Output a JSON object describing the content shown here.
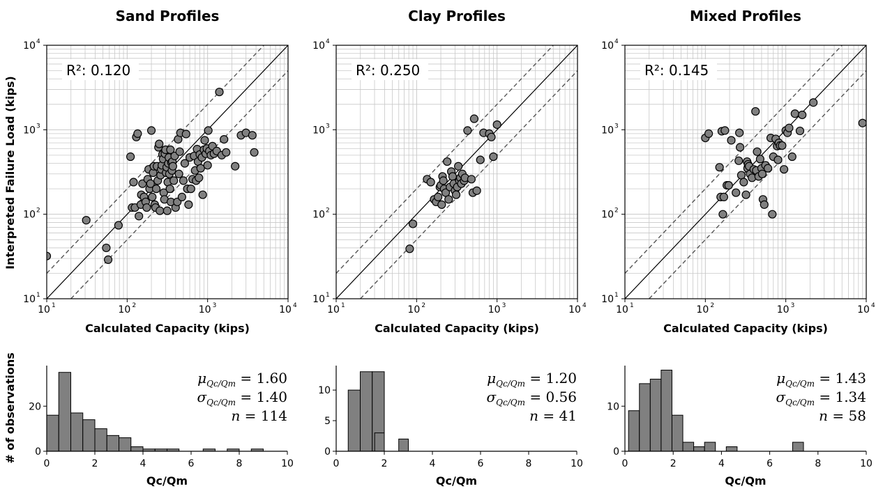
{
  "figure": {
    "scatter_ylabel": "Interpreted Failure Load (kips)",
    "hist_ylabel": "# of observations"
  },
  "chart_data": [
    {
      "id": "sand-scatter",
      "type": "scatter",
      "title": "Sand Profiles",
      "xlabel": "Calculated Capacity (kips)",
      "ylabel": "Interpreted Failure Load (kips)",
      "scale": "log",
      "xlim": [
        10,
        10000
      ],
      "ylim": [
        10,
        10000
      ],
      "annotation": "R²: 0.120",
      "reference_lines": [
        {
          "type": "1:1",
          "style": "solid"
        },
        {
          "type": "2:1",
          "style": "dashed"
        },
        {
          "type": "1:2",
          "style": "dashed"
        }
      ],
      "points": [
        [
          10,
          32
        ],
        [
          31,
          85
        ],
        [
          55,
          40
        ],
        [
          58,
          29
        ],
        [
          78,
          74
        ],
        [
          110,
          480
        ],
        [
          115,
          120
        ],
        [
          120,
          240
        ],
        [
          125,
          120
        ],
        [
          130,
          820
        ],
        [
          135,
          900
        ],
        [
          140,
          95
        ],
        [
          148,
          130
        ],
        [
          150,
          170
        ],
        [
          155,
          230
        ],
        [
          162,
          160
        ],
        [
          170,
          140
        ],
        [
          175,
          120
        ],
        [
          180,
          260
        ],
        [
          185,
          340
        ],
        [
          190,
          200
        ],
        [
          195,
          230
        ],
        [
          200,
          980
        ],
        [
          205,
          160
        ],
        [
          210,
          310
        ],
        [
          215,
          370
        ],
        [
          220,
          130
        ],
        [
          225,
          120
        ],
        [
          230,
          200
        ],
        [
          235,
          370
        ],
        [
          240,
          250
        ],
        [
          245,
          620
        ],
        [
          250,
          680
        ],
        [
          255,
          110
        ],
        [
          260,
          290
        ],
        [
          265,
          340
        ],
        [
          270,
          380
        ],
        [
          275,
          510
        ],
        [
          280,
          450
        ],
        [
          285,
          180
        ],
        [
          290,
          150
        ],
        [
          295,
          520
        ],
        [
          300,
          580
        ],
        [
          305,
          310
        ],
        [
          310,
          360
        ],
        [
          315,
          110
        ],
        [
          320,
          240
        ],
        [
          325,
          400
        ],
        [
          330,
          470
        ],
        [
          335,
          300
        ],
        [
          340,
          200
        ],
        [
          345,
          580
        ],
        [
          350,
          140
        ],
        [
          355,
          410
        ],
        [
          360,
          330
        ],
        [
          365,
          420
        ],
        [
          370,
          370
        ],
        [
          380,
          250
        ],
        [
          390,
          490
        ],
        [
          400,
          120
        ],
        [
          420,
          140
        ],
        [
          430,
          770
        ],
        [
          440,
          300
        ],
        [
          450,
          550
        ],
        [
          460,
          920
        ],
        [
          480,
          160
        ],
        [
          500,
          250
        ],
        [
          520,
          400
        ],
        [
          540,
          890
        ],
        [
          560,
          200
        ],
        [
          580,
          130
        ],
        [
          600,
          470
        ],
        [
          620,
          200
        ],
        [
          650,
          260
        ],
        [
          680,
          490
        ],
        [
          700,
          330
        ],
        [
          720,
          250
        ],
        [
          740,
          590
        ],
        [
          760,
          420
        ],
        [
          780,
          270
        ],
        [
          800,
          510
        ],
        [
          820,
          350
        ],
        [
          850,
          470
        ],
        [
          870,
          170
        ],
        [
          900,
          580
        ],
        [
          920,
          750
        ],
        [
          950,
          520
        ],
        [
          980,
          600
        ],
        [
          1000,
          380
        ],
        [
          1020,
          980
        ],
        [
          1050,
          560
        ],
        [
          1100,
          500
        ],
        [
          1150,
          640
        ],
        [
          1200,
          520
        ],
        [
          1300,
          560
        ],
        [
          1400,
          2800
        ],
        [
          1500,
          500
        ],
        [
          1600,
          770
        ],
        [
          1700,
          540
        ],
        [
          2200,
          370
        ],
        [
          2600,
          860
        ],
        [
          3000,
          920
        ],
        [
          3600,
          860
        ],
        [
          3800,
          540
        ]
      ]
    },
    {
      "id": "clay-scatter",
      "type": "scatter",
      "title": "Clay Profiles",
      "xlabel": "Calculated Capacity (kips)",
      "scale": "log",
      "xlim": [
        10,
        10000
      ],
      "ylim": [
        10,
        10000
      ],
      "annotation": "R²: 0.250",
      "reference_lines": [
        {
          "type": "1:1",
          "style": "solid"
        },
        {
          "type": "2:1",
          "style": "dashed"
        },
        {
          "type": "1:2",
          "style": "dashed"
        }
      ],
      "points": [
        [
          82,
          39
        ],
        [
          90,
          77
        ],
        [
          135,
          260
        ],
        [
          150,
          240
        ],
        [
          165,
          150
        ],
        [
          175,
          140
        ],
        [
          185,
          160
        ],
        [
          195,
          210
        ],
        [
          200,
          220
        ],
        [
          205,
          130
        ],
        [
          210,
          280
        ],
        [
          215,
          250
        ],
        [
          220,
          200
        ],
        [
          230,
          180
        ],
        [
          240,
          420
        ],
        [
          250,
          150
        ],
        [
          260,
          210
        ],
        [
          270,
          320
        ],
        [
          280,
          280
        ],
        [
          290,
          230
        ],
        [
          300,
          190
        ],
        [
          310,
          170
        ],
        [
          320,
          210
        ],
        [
          330,
          370
        ],
        [
          340,
          250
        ],
        [
          350,
          270
        ],
        [
          360,
          230
        ],
        [
          370,
          300
        ],
        [
          390,
          250
        ],
        [
          400,
          270
        ],
        [
          430,
          980
        ],
        [
          480,
          260
        ],
        [
          500,
          180
        ],
        [
          520,
          1350
        ],
        [
          560,
          190
        ],
        [
          620,
          440
        ],
        [
          680,
          920
        ],
        [
          800,
          900
        ],
        [
          850,
          820
        ],
        [
          900,
          480
        ],
        [
          1000,
          1150
        ]
      ]
    },
    {
      "id": "mixed-scatter",
      "type": "scatter",
      "title": "Mixed Profiles",
      "xlabel": "Calculated Capacity (kips)",
      "scale": "log",
      "xlim": [
        10,
        10000
      ],
      "ylim": [
        10,
        10000
      ],
      "annotation": "R²: 0.145",
      "reference_lines": [
        {
          "type": "1:1",
          "style": "solid"
        },
        {
          "type": "2:1",
          "style": "dashed"
        },
        {
          "type": "1:2",
          "style": "dashed"
        }
      ],
      "points": [
        [
          100,
          800
        ],
        [
          110,
          900
        ],
        [
          150,
          360
        ],
        [
          155,
          160
        ],
        [
          160,
          960
        ],
        [
          165,
          100
        ],
        [
          170,
          160
        ],
        [
          175,
          980
        ],
        [
          185,
          220
        ],
        [
          195,
          220
        ],
        [
          210,
          750
        ],
        [
          240,
          180
        ],
        [
          260,
          430
        ],
        [
          265,
          920
        ],
        [
          270,
          620
        ],
        [
          280,
          290
        ],
        [
          300,
          240
        ],
        [
          320,
          170
        ],
        [
          330,
          420
        ],
        [
          335,
          350
        ],
        [
          340,
          390
        ],
        [
          350,
          370
        ],
        [
          360,
          300
        ],
        [
          380,
          270
        ],
        [
          400,
          340
        ],
        [
          420,
          1650
        ],
        [
          430,
          330
        ],
        [
          440,
          550
        ],
        [
          460,
          280
        ],
        [
          480,
          450
        ],
        [
          500,
          350
        ],
        [
          510,
          300
        ],
        [
          520,
          150
        ],
        [
          540,
          130
        ],
        [
          560,
          380
        ],
        [
          600,
          350
        ],
        [
          650,
          800
        ],
        [
          680,
          100
        ],
        [
          700,
          480
        ],
        [
          750,
          780
        ],
        [
          780,
          640
        ],
        [
          800,
          440
        ],
        [
          820,
          700
        ],
        [
          850,
          650
        ],
        [
          900,
          650
        ],
        [
          950,
          340
        ],
        [
          1000,
          980
        ],
        [
          1050,
          920
        ],
        [
          1100,
          1050
        ],
        [
          1200,
          480
        ],
        [
          1300,
          1550
        ],
        [
          1500,
          970
        ],
        [
          1600,
          1500
        ],
        [
          2200,
          2100
        ],
        [
          9000,
          1200
        ]
      ]
    },
    {
      "id": "sand-hist",
      "type": "bar",
      "subtype": "histogram",
      "xlabel": "Qc/Qm",
      "ylabel": "# of observations",
      "xlim": [
        0,
        10
      ],
      "ylim": [
        0,
        38
      ],
      "xticks": [
        0,
        2,
        4,
        6,
        8,
        10
      ],
      "yticks": [
        0,
        20
      ],
      "bin_width": 0.5,
      "bin_start": 0,
      "counts": [
        16,
        35,
        17,
        14,
        10,
        7,
        6,
        2,
        1,
        1,
        1,
        0,
        0,
        1,
        0,
        1,
        0,
        1,
        0,
        0
      ],
      "stats": {
        "mu": "1.60",
        "sigma": "1.40",
        "n": "114"
      }
    },
    {
      "id": "clay-hist",
      "type": "bar",
      "subtype": "histogram",
      "xlabel": "Qc/Qm",
      "xlim": [
        0,
        10
      ],
      "ylim": [
        0,
        14
      ],
      "xticks": [
        0,
        2,
        4,
        6,
        8,
        10
      ],
      "yticks": [
        0,
        5,
        10
      ],
      "bin_width": 0.5,
      "bin_start": 0,
      "counts": [
        0,
        10,
        13,
        13,
        0,
        0,
        0,
        0,
        0,
        0,
        0,
        0,
        0,
        0,
        0,
        0,
        0,
        0,
        0,
        0
      ],
      "extra_bars": [
        {
          "x0": 1.6,
          "x1": 2.0,
          "count": 3
        },
        {
          "x0": 2.6,
          "x1": 3.0,
          "count": 2
        }
      ],
      "stats": {
        "mu": "1.20",
        "sigma": "0.56",
        "n": "41"
      }
    },
    {
      "id": "mixed-hist",
      "type": "bar",
      "subtype": "histogram",
      "xlabel": "Qc/Qm",
      "xlim": [
        0,
        10
      ],
      "ylim": [
        0,
        19
      ],
      "xticks": [
        0,
        2,
        4,
        6,
        8,
        10
      ],
      "yticks": [
        0,
        10
      ],
      "bin_width": 0.45,
      "bin_start": 0.15,
      "counts": [
        9,
        15,
        16,
        18,
        8,
        2,
        1,
        2,
        0,
        1,
        0,
        0,
        0,
        0,
        0,
        0,
        0,
        0,
        0,
        0
      ],
      "extra_bars": [
        {
          "x0": 6.95,
          "x1": 7.4,
          "count": 2
        }
      ],
      "stats": {
        "mu": "1.43",
        "sigma": "1.34",
        "n": "58"
      }
    }
  ],
  "colors": {
    "marker_fill": "#808080",
    "marker_edge": "#000000",
    "bar_fill": "#808080",
    "grid": "#c8c8c8",
    "dashed_line": "#555555"
  }
}
